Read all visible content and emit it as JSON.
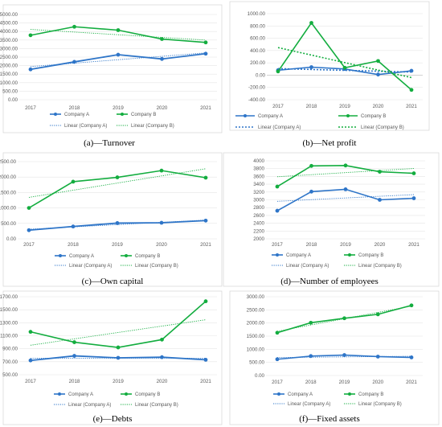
{
  "colors": {
    "company_a": "#2e75c8",
    "company_b": "#13ad3f"
  },
  "chart_data": [
    {
      "type": "line",
      "caption_letter": "(a)",
      "caption_title": "Turnover",
      "categories": [
        "2017",
        "2018",
        "2019",
        "2020",
        "2021"
      ],
      "ylim": [
        0,
        5000
      ],
      "yticks": [
        0,
        500,
        1000,
        1500,
        2000,
        2500,
        3000,
        3500,
        4000,
        4500,
        5000
      ],
      "decimals": 2,
      "series": [
        {
          "name": "Company A",
          "values": [
            1780,
            2220,
            2640,
            2390,
            2700
          ]
        },
        {
          "name": "Company B",
          "values": [
            3780,
            4280,
            4080,
            3560,
            3360
          ]
        }
      ],
      "legend": [
        "Company A",
        "Company B",
        "Linear (Company A)",
        "Linear (Company B)"
      ],
      "grid": true
    },
    {
      "type": "line",
      "caption_letter": "(b)",
      "caption_title": "Net profit",
      "categories": [
        "2017",
        "2018",
        "2019",
        "2020",
        "2021"
      ],
      "ylim": [
        -400,
        1000
      ],
      "yticks": [
        -400,
        -200,
        0,
        200,
        400,
        600,
        800,
        1000
      ],
      "decimals": 2,
      "series": [
        {
          "name": "Company A",
          "values": [
            80,
            130,
            100,
            10,
            70
          ]
        },
        {
          "name": "Company B",
          "values": [
            60,
            850,
            120,
            230,
            -240
          ]
        }
      ],
      "legend": [
        "Company A",
        "Company B",
        "Linear (Company A)",
        "Linear (Company B)"
      ],
      "grid": true
    },
    {
      "type": "line",
      "caption_letter": "(c)",
      "caption_title": "Own capital",
      "categories": [
        "2017",
        "2018",
        "2019",
        "2020",
        "2021"
      ],
      "ylim": [
        0,
        2500
      ],
      "yticks": [
        0,
        500,
        1000,
        1500,
        2000,
        2500
      ],
      "decimals": 2,
      "series": [
        {
          "name": "Company A",
          "values": [
            280,
            400,
            510,
            520,
            590
          ]
        },
        {
          "name": "Company B",
          "values": [
            1000,
            1850,
            1990,
            2210,
            1980
          ]
        }
      ],
      "legend": [
        "Company A",
        "Company B",
        "Linear (Company A)",
        "Linear (Company B)"
      ],
      "grid": true
    },
    {
      "type": "line",
      "caption_letter": "(d)",
      "caption_title": "Number of employees",
      "categories": [
        "2017",
        "2018",
        "2019",
        "2020",
        "2021"
      ],
      "ylim": [
        2000,
        4000
      ],
      "yticks": [
        2000,
        2200,
        2400,
        2600,
        2800,
        3000,
        3200,
        3400,
        3600,
        3800,
        4000
      ],
      "decimals": 0,
      "series": [
        {
          "name": "Company A",
          "values": [
            2720,
            3210,
            3270,
            3000,
            3040
          ]
        },
        {
          "name": "Company B",
          "values": [
            3340,
            3870,
            3880,
            3720,
            3680
          ]
        }
      ],
      "legend": [
        "Company A",
        "Company B",
        "Linear (Company A)",
        "Linear (Company B)"
      ],
      "grid": true
    },
    {
      "type": "line",
      "caption_letter": "(e)",
      "caption_title": "Debts",
      "categories": [
        "2017",
        "2018",
        "2019",
        "2020",
        "2021"
      ],
      "ylim": [
        500,
        1700
      ],
      "yticks": [
        500,
        700,
        900,
        1100,
        1300,
        1500,
        1700
      ],
      "decimals": 2,
      "series": [
        {
          "name": "Company A",
          "values": [
            720,
            790,
            760,
            770,
            730
          ]
        },
        {
          "name": "Company B",
          "values": [
            1160,
            1000,
            920,
            1040,
            1630
          ]
        }
      ],
      "legend": [
        "Company A",
        "Company B",
        "Linear (Company A)",
        "Linear (Company B)"
      ],
      "grid": true
    },
    {
      "type": "line",
      "caption_letter": "(f)",
      "caption_title": "Fixed assets",
      "categories": [
        "2017",
        "2018",
        "2019",
        "2020",
        "2021"
      ],
      "ylim": [
        0,
        3000
      ],
      "yticks": [
        0,
        500,
        1000,
        1500,
        2000,
        2500,
        3000
      ],
      "decimals": 2,
      "series": [
        {
          "name": "Company A",
          "values": [
            620,
            740,
            780,
            720,
            690
          ]
        },
        {
          "name": "Company B",
          "values": [
            1630,
            2010,
            2180,
            2330,
            2670
          ]
        }
      ],
      "legend": [
        "Company A",
        "Company B",
        "Linear (Company A)",
        "Linear (Company B)"
      ],
      "grid": true
    }
  ]
}
